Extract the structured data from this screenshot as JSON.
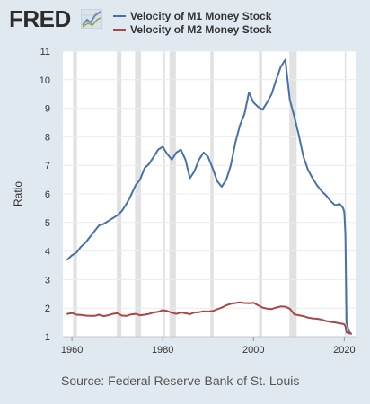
{
  "header": {
    "logo_text": "FRED",
    "logo_icon": "chart-line-icon"
  },
  "legend": [
    {
      "label": "Velocity of M1 Money Stock",
      "color": "#4572a7"
    },
    {
      "label": "Velocity of M2 Money Stock",
      "color": "#aa4643"
    }
  ],
  "source": "Source: Federal Reserve Bank of St. Louis",
  "chart_data": {
    "type": "line",
    "title": "",
    "xlabel": "",
    "ylabel": "Ratio",
    "xlim": [
      1958,
      2022.5
    ],
    "ylim": [
      1,
      11
    ],
    "x_ticks": [
      1960,
      1980,
      2000,
      2020
    ],
    "y_ticks": [
      1,
      2,
      3,
      4,
      5,
      6,
      7,
      8,
      9,
      10,
      11
    ],
    "grid": "horizontal",
    "recessions": [
      [
        1960.25,
        1961.1
      ],
      [
        1969.9,
        1970.9
      ],
      [
        1973.9,
        1975.2
      ],
      [
        1980.0,
        1980.5
      ],
      [
        1981.5,
        1982.9
      ],
      [
        1990.5,
        1991.2
      ],
      [
        2001.2,
        2001.9
      ],
      [
        2007.9,
        2009.5
      ],
      [
        2020.1,
        2020.4
      ]
    ],
    "series": [
      {
        "name": "Velocity of M1 Money Stock",
        "color": "#4572a7",
        "x": [
          1959,
          1960,
          1961,
          1962,
          1963,
          1964,
          1965,
          1966,
          1967,
          1968,
          1969,
          1970,
          1971,
          1972,
          1973,
          1974,
          1975,
          1976,
          1977,
          1978,
          1979,
          1980,
          1981,
          1982,
          1983,
          1984,
          1985,
          1986,
          1987,
          1988,
          1989,
          1990,
          1991,
          1992,
          1993,
          1994,
          1995,
          1996,
          1997,
          1998,
          1999,
          2000,
          2001,
          2002,
          2003,
          2004,
          2005,
          2006,
          2007,
          2008,
          2009,
          2010,
          2011,
          2012,
          2013,
          2014,
          2015,
          2016,
          2017,
          2018,
          2019,
          2019.75,
          2020.0,
          2020.25,
          2020.5,
          2021.0,
          2021.5
        ],
        "y": [
          3.7,
          3.85,
          3.95,
          4.15,
          4.3,
          4.5,
          4.7,
          4.9,
          4.95,
          5.05,
          5.15,
          5.25,
          5.4,
          5.65,
          5.95,
          6.3,
          6.5,
          6.9,
          7.05,
          7.3,
          7.55,
          7.65,
          7.4,
          7.2,
          7.45,
          7.55,
          7.2,
          6.55,
          6.8,
          7.2,
          7.45,
          7.3,
          6.9,
          6.45,
          6.25,
          6.5,
          7.0,
          7.8,
          8.4,
          8.8,
          9.55,
          9.2,
          9.05,
          8.95,
          9.2,
          9.5,
          10.0,
          10.45,
          10.7,
          9.3,
          8.7,
          8.05,
          7.3,
          6.85,
          6.55,
          6.3,
          6.1,
          5.95,
          5.75,
          5.6,
          5.65,
          5.5,
          5.35,
          4.6,
          1.5,
          1.2,
          1.1
        ]
      },
      {
        "name": "Velocity of M2 Money Stock",
        "color": "#aa4643",
        "x": [
          1959,
          1960,
          1961,
          1962,
          1963,
          1964,
          1965,
          1966,
          1967,
          1968,
          1969,
          1970,
          1971,
          1972,
          1973,
          1974,
          1975,
          1976,
          1977,
          1978,
          1979,
          1980,
          1981,
          1982,
          1983,
          1984,
          1985,
          1986,
          1987,
          1988,
          1989,
          1990,
          1991,
          1992,
          1993,
          1994,
          1995,
          1996,
          1997,
          1998,
          1999,
          2000,
          2001,
          2002,
          2003,
          2004,
          2005,
          2006,
          2007,
          2008,
          2009,
          2010,
          2011,
          2012,
          2013,
          2014,
          2015,
          2016,
          2017,
          2018,
          2019,
          2019.75,
          2020.0,
          2020.25,
          2020.5,
          2021.0,
          2021.5
        ],
        "y": [
          1.8,
          1.83,
          1.77,
          1.76,
          1.74,
          1.73,
          1.73,
          1.77,
          1.72,
          1.75,
          1.8,
          1.82,
          1.74,
          1.73,
          1.78,
          1.8,
          1.75,
          1.77,
          1.8,
          1.85,
          1.87,
          1.93,
          1.9,
          1.84,
          1.8,
          1.85,
          1.82,
          1.79,
          1.85,
          1.86,
          1.89,
          1.88,
          1.9,
          1.96,
          2.02,
          2.1,
          2.15,
          2.18,
          2.2,
          2.18,
          2.17,
          2.19,
          2.1,
          2.02,
          1.98,
          1.97,
          2.02,
          2.06,
          2.05,
          1.98,
          1.78,
          1.75,
          1.72,
          1.67,
          1.64,
          1.63,
          1.6,
          1.55,
          1.52,
          1.5,
          1.47,
          1.45,
          1.43,
          1.37,
          1.15,
          1.12,
          1.11
        ]
      }
    ]
  }
}
